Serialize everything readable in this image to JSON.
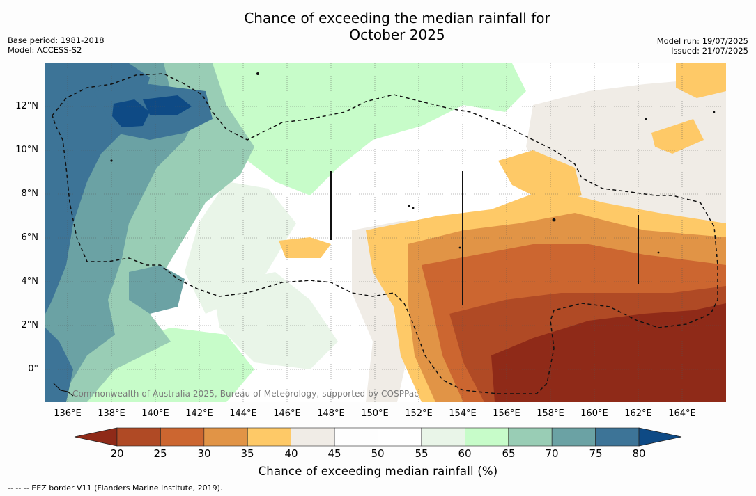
{
  "title_line1": "Chance of exceeding the median rainfall for",
  "title_line2": "October 2025",
  "meta": {
    "base_period": "Base period: 1981-2018",
    "model": "Model: ACCESS-S2",
    "model_run": "Model run: 19/07/2025",
    "issued": "Issued: 21/07/2025"
  },
  "lat_labels": [
    "12°N",
    "10°N",
    "8°N",
    "6°N",
    "4°N",
    "2°N",
    "0°"
  ],
  "lon_labels": [
    "136°E",
    "138°E",
    "140°E",
    "142°E",
    "144°E",
    "146°E",
    "148°E",
    "150°E",
    "152°E",
    "154°E",
    "156°E",
    "158°E",
    "160°E",
    "162°E",
    "164°E"
  ],
  "copyright": "Commonwealth of Australia 2025, Bureau of Meteorology, supported by COSPPac",
  "colorbar": {
    "ticks": [
      "20",
      "25",
      "30",
      "35",
      "40",
      "45",
      "50",
      "55",
      "60",
      "65",
      "70",
      "75",
      "80"
    ],
    "colors": [
      "#8f2a18",
      "#b04a25",
      "#cc6630",
      "#e19446",
      "#fec967",
      "#f0ece6",
      "#fefefe",
      "#ffffff",
      "#e9f5e8",
      "#c7fcc9",
      "#99cdb5",
      "#6ba2a4",
      "#3d7497",
      "#0e4a85"
    ],
    "label": "Chance of exceeding median rainfall (%)"
  },
  "footer": "--  --  -- EEZ border V11 (Flanders Marine Institute, 2019)."
}
